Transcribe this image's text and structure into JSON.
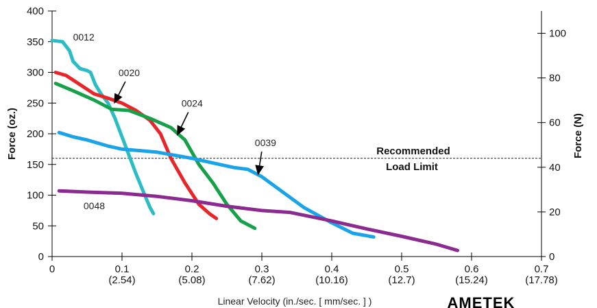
{
  "chart_data": {
    "type": "line",
    "title": "",
    "xlabel": "Linear Velocity (in./sec. [ mm/sec. ] )",
    "ylabel": "Force (oz.)",
    "y2label": "Force (N)",
    "xlim": [
      0,
      0.7
    ],
    "ylim": [
      0,
      400
    ],
    "y2lim": [
      0,
      110
    ],
    "grid": false,
    "x_ticks": [
      {
        "value": 0,
        "label": "0",
        "sub": ""
      },
      {
        "value": 0.1,
        "label": "0.1",
        "sub": "(2.54)"
      },
      {
        "value": 0.2,
        "label": "0.2",
        "sub": "(5.08)"
      },
      {
        "value": 0.3,
        "label": "0.3",
        "sub": "(7.62)"
      },
      {
        "value": 0.4,
        "label": "0.4",
        "sub": "(10.16)"
      },
      {
        "value": 0.5,
        "label": "0.5",
        "sub": "(12.7)"
      },
      {
        "value": 0.6,
        "label": "0.6",
        "sub": "(15.24)"
      },
      {
        "value": 0.7,
        "label": "0.7",
        "sub": "(17.78)"
      }
    ],
    "y_ticks": [
      0,
      50,
      100,
      150,
      200,
      250,
      300,
      350,
      400
    ],
    "y2_ticks": [
      0,
      20,
      40,
      60,
      80,
      100
    ],
    "reference_line": {
      "y": 160,
      "label_line1": "Recommended",
      "label_line2": "Load Limit"
    },
    "series": [
      {
        "name": "0012",
        "color": "#2bbcc4",
        "points": [
          [
            0.0,
            352
          ],
          [
            0.015,
            350
          ],
          [
            0.025,
            335
          ],
          [
            0.03,
            318
          ],
          [
            0.04,
            306
          ],
          [
            0.05,
            303
          ],
          [
            0.055,
            300
          ],
          [
            0.062,
            280
          ],
          [
            0.07,
            265
          ],
          [
            0.08,
            250
          ],
          [
            0.09,
            225
          ],
          [
            0.1,
            195
          ],
          [
            0.11,
            165
          ],
          [
            0.12,
            135
          ],
          [
            0.13,
            107
          ],
          [
            0.14,
            80
          ],
          [
            0.145,
            70
          ]
        ]
      },
      {
        "name": "0020",
        "color": "#e8262a",
        "points": [
          [
            0.005,
            300
          ],
          [
            0.02,
            295
          ],
          [
            0.04,
            280
          ],
          [
            0.06,
            265
          ],
          [
            0.08,
            258
          ],
          [
            0.1,
            250
          ],
          [
            0.12,
            238
          ],
          [
            0.14,
            222
          ],
          [
            0.155,
            200
          ],
          [
            0.17,
            160
          ],
          [
            0.19,
            120
          ],
          [
            0.21,
            85
          ],
          [
            0.225,
            70
          ],
          [
            0.235,
            62
          ]
        ]
      },
      {
        "name": "0024",
        "color": "#17a04a",
        "points": [
          [
            0.005,
            282
          ],
          [
            0.03,
            270
          ],
          [
            0.06,
            255
          ],
          [
            0.085,
            240
          ],
          [
            0.11,
            238
          ],
          [
            0.14,
            225
          ],
          [
            0.17,
            210
          ],
          [
            0.19,
            190
          ],
          [
            0.21,
            150
          ],
          [
            0.23,
            120
          ],
          [
            0.25,
            85
          ],
          [
            0.27,
            58
          ],
          [
            0.29,
            46
          ]
        ]
      },
      {
        "name": "0039",
        "color": "#1aa3e8",
        "points": [
          [
            0.01,
            202
          ],
          [
            0.03,
            195
          ],
          [
            0.05,
            190
          ],
          [
            0.08,
            180
          ],
          [
            0.1,
            175
          ],
          [
            0.15,
            170
          ],
          [
            0.2,
            160
          ],
          [
            0.24,
            150
          ],
          [
            0.26,
            145
          ],
          [
            0.28,
            142
          ],
          [
            0.3,
            130
          ],
          [
            0.33,
            105
          ],
          [
            0.36,
            80
          ],
          [
            0.4,
            55
          ],
          [
            0.43,
            38
          ],
          [
            0.46,
            32
          ]
        ]
      },
      {
        "name": "0048",
        "color": "#8b2a8f",
        "points": [
          [
            0.01,
            107
          ],
          [
            0.05,
            105
          ],
          [
            0.1,
            103
          ],
          [
            0.15,
            98
          ],
          [
            0.2,
            91
          ],
          [
            0.25,
            82
          ],
          [
            0.3,
            75
          ],
          [
            0.34,
            72
          ],
          [
            0.4,
            58
          ],
          [
            0.45,
            45
          ],
          [
            0.5,
            33
          ],
          [
            0.55,
            20
          ],
          [
            0.58,
            10
          ]
        ]
      }
    ],
    "annotations": [
      {
        "series": "0012",
        "text": "0012",
        "x": 0.03,
        "y": 352,
        "arrow": false
      },
      {
        "series": "0020",
        "text": "0020",
        "x": 0.095,
        "y": 294,
        "arrow": true,
        "arrow_to": [
          0.09,
          252
        ]
      },
      {
        "series": "0024",
        "text": "0024",
        "x": 0.185,
        "y": 244,
        "arrow": true,
        "arrow_to": [
          0.18,
          200
        ]
      },
      {
        "series": "0039",
        "text": "0039",
        "x": 0.29,
        "y": 180,
        "arrow": true,
        "arrow_to": [
          0.295,
          136
        ]
      },
      {
        "series": "0048",
        "text": "0048",
        "x": 0.045,
        "y": 77,
        "arrow": false
      }
    ]
  },
  "logo_text": "AMETEK"
}
